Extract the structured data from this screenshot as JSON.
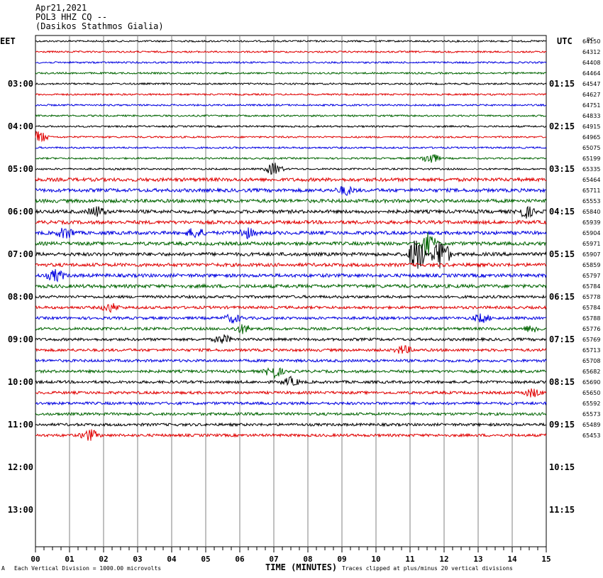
{
  "header": {
    "date": "Apr21,2021",
    "station": "POL3 HHZ CQ --",
    "location": "(Dasikos Stathmos Gialia)"
  },
  "left_tz": "EET",
  "right_tz": "UTC",
  "dc_label": "DC",
  "footer": {
    "scale": "Each Vertical Division = 1000.00 microvolts",
    "clip": "Traces clipped at plus/minus 20 vertical divisions",
    "corner": "A"
  },
  "colors": {
    "trace": [
      "#000000",
      "#e00000",
      "#0000e0",
      "#006400"
    ],
    "grid": "#808080"
  },
  "chart_data": {
    "type": "line",
    "xlabel": "TIME (MINUTES)",
    "xlim": [
      0,
      15
    ],
    "x_ticks": [
      "00",
      "01",
      "02",
      "03",
      "04",
      "05",
      "06",
      "07",
      "08",
      "09",
      "10",
      "11",
      "12",
      "13",
      "14",
      "15"
    ],
    "left_hour_labels": [
      "03:00",
      "04:00",
      "05:00",
      "06:00",
      "07:00",
      "08:00",
      "09:00",
      "10:00",
      "11:00",
      "12:00",
      "13:00"
    ],
    "right_hour_labels": [
      "01:15",
      "02:15",
      "03:15",
      "04:15",
      "05:15",
      "06:15",
      "07:15",
      "08:15",
      "09:15",
      "10:15",
      "11:15"
    ],
    "trace_count": 38,
    "dc_values": [
      64150,
      64312,
      64408,
      64464,
      64547,
      64627,
      64751,
      64833,
      64915,
      64965,
      65075,
      65199,
      65335,
      65464,
      65711,
      65553,
      65840,
      65939,
      65904,
      65971,
      65907,
      65859,
      65797,
      65784,
      65778,
      65784,
      65788,
      65776,
      65769,
      65713,
      65708,
      65682,
      65690,
      65650,
      65592,
      65573,
      65489,
      65453
    ],
    "events": [
      {
        "trace": 9,
        "minute": 0.1,
        "amp": 9
      },
      {
        "trace": 11,
        "minute": 11.6,
        "amp": 8
      },
      {
        "trace": 12,
        "minute": 7.0,
        "amp": 9
      },
      {
        "trace": 14,
        "minute": 9.1,
        "amp": 6
      },
      {
        "trace": 16,
        "minute": 1.8,
        "amp": 7
      },
      {
        "trace": 16,
        "minute": 14.4,
        "amp": 8
      },
      {
        "trace": 18,
        "minute": 0.9,
        "amp": 8
      },
      {
        "trace": 18,
        "minute": 4.7,
        "amp": 7
      },
      {
        "trace": 18,
        "minute": 6.2,
        "amp": 7
      },
      {
        "trace": 19,
        "minute": 11.5,
        "amp": 16
      },
      {
        "trace": 20,
        "minute": 11.2,
        "amp": 26
      },
      {
        "trace": 20,
        "minute": 11.9,
        "amp": 24
      },
      {
        "trace": 22,
        "minute": 0.6,
        "amp": 8
      },
      {
        "trace": 25,
        "minute": 2.2,
        "amp": 6
      },
      {
        "trace": 26,
        "minute": 5.8,
        "amp": 6
      },
      {
        "trace": 26,
        "minute": 13.1,
        "amp": 6
      },
      {
        "trace": 27,
        "minute": 6.1,
        "amp": 6
      },
      {
        "trace": 27,
        "minute": 14.6,
        "amp": 5
      },
      {
        "trace": 28,
        "minute": 5.5,
        "amp": 6
      },
      {
        "trace": 29,
        "minute": 10.8,
        "amp": 6
      },
      {
        "trace": 31,
        "minute": 7.0,
        "amp": 9
      },
      {
        "trace": 32,
        "minute": 7.5,
        "amp": 6
      },
      {
        "trace": 33,
        "minute": 14.6,
        "amp": 6
      },
      {
        "trace": 37,
        "minute": 1.6,
        "amp": 8
      }
    ]
  }
}
